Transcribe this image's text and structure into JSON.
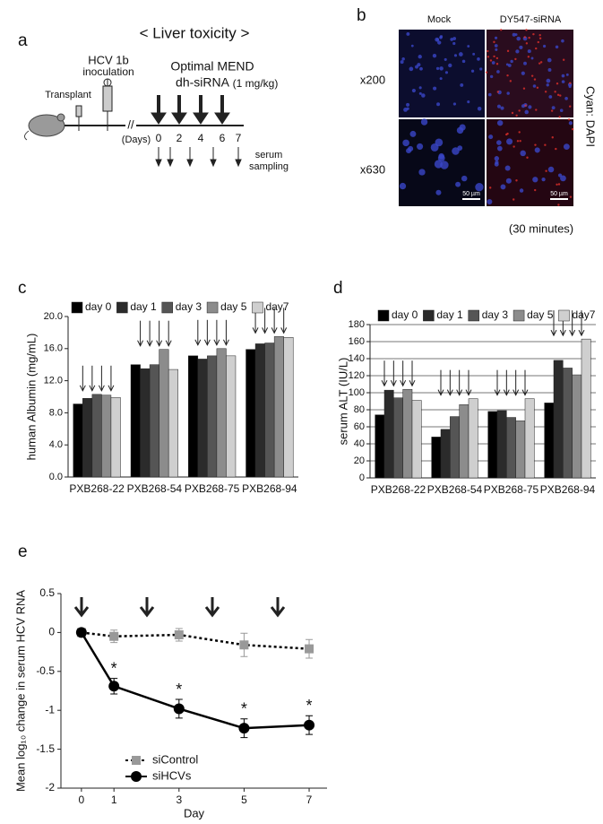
{
  "figure": {
    "panel_labels": [
      "a",
      "b",
      "c",
      "d",
      "e"
    ],
    "panel_a": {
      "title": "< Liver toxicity >",
      "transplant": "Transplant",
      "hcv": "HCV 1b",
      "inoculation": "inoculation",
      "treatment": "Optimal MEND",
      "agent": "dh-siRNA",
      "dose": "(1 mg/kg)",
      "days_label": "(Days)",
      "days": [
        0,
        2,
        4,
        6,
        7
      ],
      "serum": "serum",
      "sampling": "sampling"
    },
    "panel_b": {
      "columns": [
        "Mock",
        "DY547-siRNA"
      ],
      "rows": [
        "x200",
        "x630"
      ],
      "stain": "Cyan: DAPI",
      "scale_bar": "50 µm",
      "time": "(30 minutes)"
    }
  },
  "chart_data": [
    {
      "type": "bar",
      "y_label": "human Albumin (mg/mL)",
      "categories": [
        "PXB268-22",
        "PXB268-54",
        "PXB268-75",
        "PXB268-94"
      ],
      "series": [
        {
          "name": "day 0",
          "color": "#000000",
          "values": [
            9.1,
            14.0,
            15.1,
            15.9
          ]
        },
        {
          "name": "day 1",
          "color": "#2b2b2b",
          "values": [
            9.8,
            13.5,
            14.7,
            16.6
          ]
        },
        {
          "name": "day 3",
          "color": "#555555",
          "values": [
            10.3,
            14.0,
            15.1,
            16.7
          ]
        },
        {
          "name": "day 5",
          "color": "#8c8c8c",
          "values": [
            10.2,
            15.9,
            16.0,
            17.5
          ]
        },
        {
          "name": "day7",
          "color": "#cfcfcf",
          "values": [
            9.9,
            13.4,
            15.1,
            17.4
          ]
        }
      ],
      "ylim": [
        0,
        20
      ],
      "yticks": [
        {
          "value": 0,
          "label": "0.0"
        },
        {
          "value": 4,
          "label": "4.0"
        },
        {
          "value": 8,
          "label": "8.0"
        },
        {
          "value": 12,
          "label": "12.0"
        },
        {
          "value": 16,
          "label": "16.0"
        },
        {
          "value": 20,
          "label": "20.0"
        }
      ],
      "grid": false,
      "legend": "top"
    },
    {
      "type": "bar",
      "y_label": "serum ALT (IU/L)",
      "categories": [
        "PXB268-22",
        "PXB268-54",
        "PXB268-75",
        "PXB268-94"
      ],
      "series": [
        {
          "name": "day 0",
          "color": "#000000",
          "values": [
            74,
            48,
            78,
            88
          ]
        },
        {
          "name": "day 1",
          "color": "#2b2b2b",
          "values": [
            103,
            57,
            79,
            138
          ]
        },
        {
          "name": "day 3",
          "color": "#555555",
          "values": [
            94,
            72,
            71,
            129
          ]
        },
        {
          "name": "day 5",
          "color": "#8c8c8c",
          "values": [
            104,
            86,
            67,
            121
          ]
        },
        {
          "name": "day7",
          "color": "#cfcfcf",
          "values": [
            91,
            93,
            93,
            163
          ]
        }
      ],
      "ylim": [
        0,
        180
      ],
      "yticks": [
        0,
        20,
        40,
        60,
        80,
        100,
        120,
        140,
        160,
        180
      ],
      "grid": true,
      "legend": "top"
    },
    {
      "type": "line",
      "x_label": "Day",
      "y_label": "Mean log₁₀ change in serum HCV RNA",
      "x": [
        0,
        1,
        3,
        5,
        7
      ],
      "series": [
        {
          "name": "siControl",
          "color": "#999999",
          "marker": "square",
          "line_style": "dotted",
          "values": [
            0,
            -0.05,
            -0.03,
            -0.16,
            -0.21
          ],
          "errors": [
            0.03,
            0.08,
            0.08,
            0.15,
            0.12
          ]
        },
        {
          "name": "siHCVs",
          "color": "#000000",
          "marker": "circle",
          "line_style": "solid",
          "values": [
            0,
            -0.69,
            -0.98,
            -1.23,
            -1.19
          ],
          "errors": [
            0.03,
            0.1,
            0.12,
            0.12,
            0.12
          ],
          "annotation": "*"
        }
      ],
      "xlim": [
        -0.63,
        7.55
      ],
      "xticks": [
        0,
        1,
        3,
        5,
        7
      ],
      "ylim": [
        -2,
        0.5
      ],
      "yticks": [
        0.5,
        0,
        -0.5,
        -1,
        -1.5,
        -2
      ],
      "legend": "bottom-left"
    }
  ]
}
